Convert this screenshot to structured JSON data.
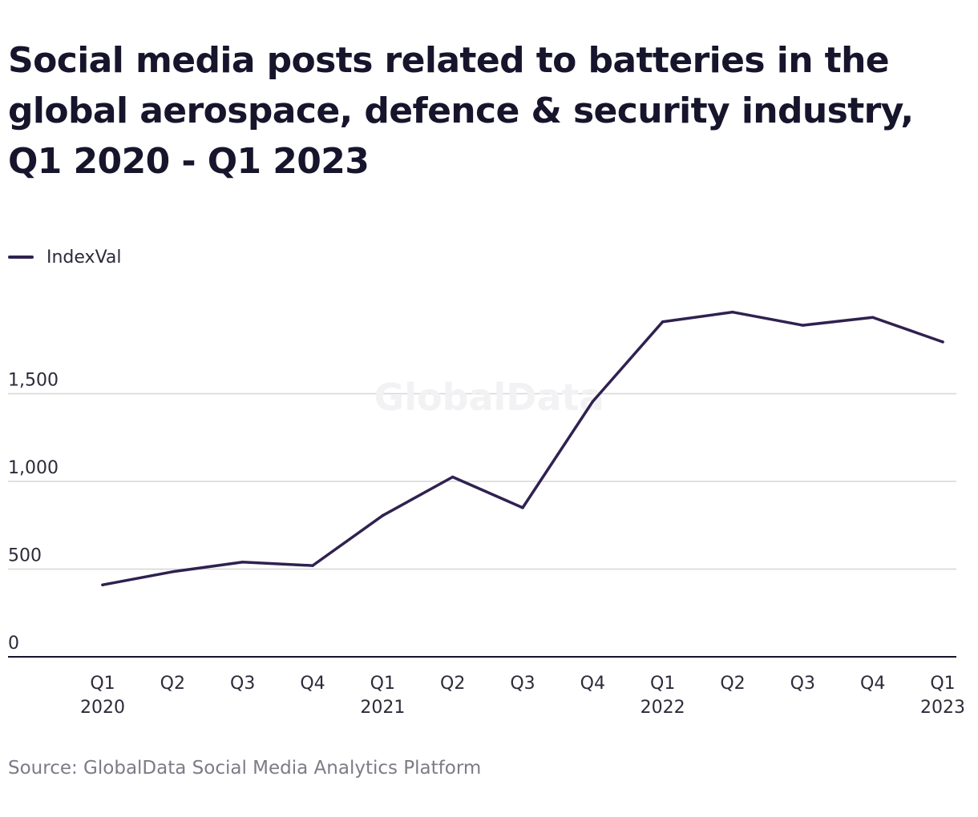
{
  "title": "Social media posts related to batteries in the global aerospace, defence & security industry, Q1 2020 - Q1 2023",
  "source": "Source: GlobalData Social Media Analytics Platform",
  "watermark": "GlobalData",
  "colors": {
    "series": "#2f2150",
    "grid": "#d6d6d6",
    "axis": "#14142b"
  },
  "legend": {
    "placement": "top-left",
    "items": [
      {
        "label": "IndexVal"
      }
    ]
  },
  "chart_data": {
    "type": "line",
    "title": "Social media posts related to batteries in the global aerospace, defence & security industry, Q1 2020 - Q1 2023",
    "xlabel": "",
    "ylabel": "",
    "categories": [
      "Q1 2020",
      "Q2",
      "Q3",
      "Q4",
      "Q1 2021",
      "Q2",
      "Q3",
      "Q4",
      "Q1 2022",
      "Q2",
      "Q3",
      "Q4",
      "Q1 2023"
    ],
    "x_tick_labels": [
      [
        "Q1",
        "2020"
      ],
      [
        "Q2"
      ],
      [
        "Q3"
      ],
      [
        "Q4"
      ],
      [
        "Q1",
        "2021"
      ],
      [
        "Q2"
      ],
      [
        "Q3"
      ],
      [
        "Q4"
      ],
      [
        "Q1",
        "2022"
      ],
      [
        "Q2"
      ],
      [
        "Q3"
      ],
      [
        "Q4"
      ],
      [
        "Q1",
        "2023"
      ]
    ],
    "y_ticks": [
      0,
      500,
      1000,
      1500
    ],
    "y_tick_labels": [
      "0",
      "500",
      "1,000",
      "1,500"
    ],
    "ylim": [
      0,
      2000
    ],
    "grid": true,
    "series": [
      {
        "name": "IndexVal",
        "values": [
          410,
          485,
          540,
          520,
          805,
          1025,
          850,
          1455,
          1910,
          1965,
          1890,
          1935,
          1795
        ]
      }
    ]
  }
}
